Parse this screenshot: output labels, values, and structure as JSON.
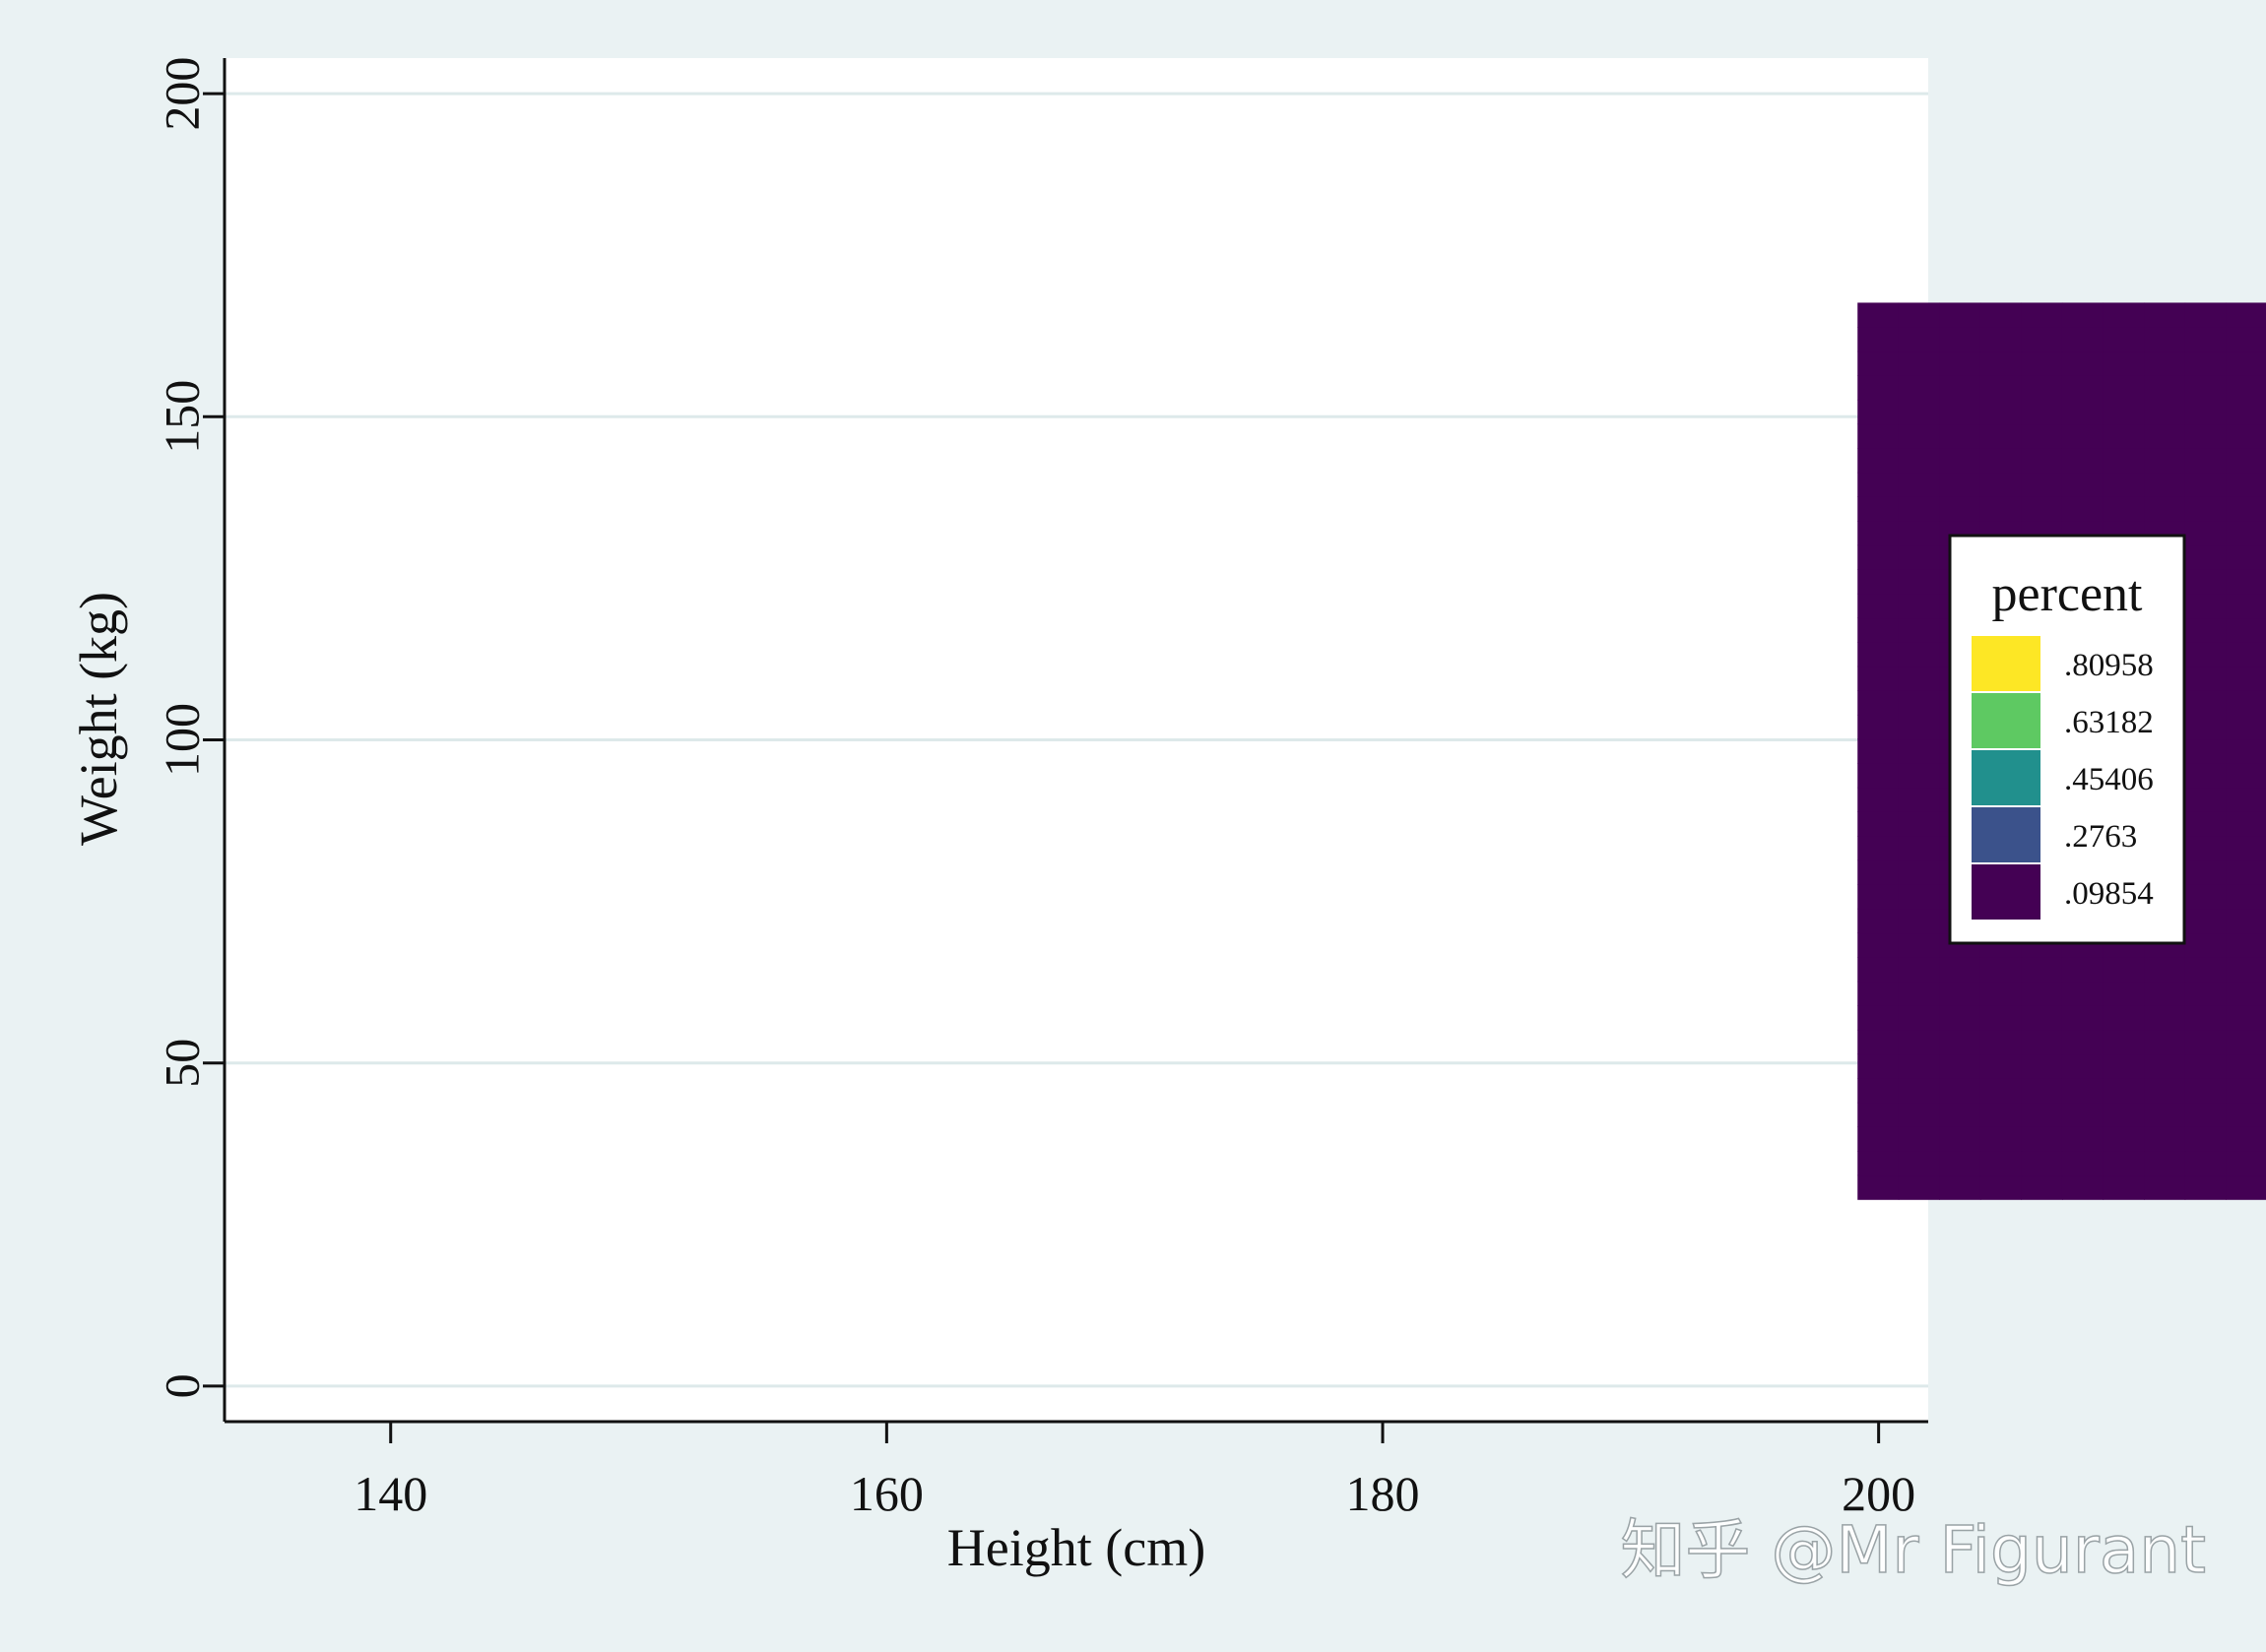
{
  "chart_data": {
    "type": "heatmap",
    "title": "",
    "xlabel": "Height (cm)",
    "ylabel": "Weight (kg)",
    "xlim": [
      133.3,
      202
    ],
    "ylim": [
      -5.5,
      205.5
    ],
    "x_ticks": [
      "140",
      "160",
      "180",
      "200"
    ],
    "y_ticks": [
      "0",
      "50",
      "100",
      "150",
      "200"
    ],
    "grid": "horizontal",
    "bin_width_x": 1.65,
    "bin_width_y": 3.75,
    "x_origin": 134.8,
    "y_origin": 28.9,
    "colors": [
      "#440154",
      "#3b528b",
      "#21908d",
      "#5ec962",
      "#fde725"
    ],
    "legend": {
      "title": "percent",
      "placement": "right",
      "entries": [
        {
          "label": ".80958",
          "color": "#fde725"
        },
        {
          "label": ".63182",
          "color": "#5ec962"
        },
        {
          "label": ".45406",
          "color": "#21908d"
        },
        {
          "label": ".2763",
          "color": "#3b528b"
        },
        {
          "label": ".09854",
          "color": "#440154"
        }
      ]
    },
    "grid_rows_from_bottom": [
      ".......................................aaaaaaaaaaaaaaaaaaaaaaa",
      ".......................................aaaaaaaaaaaaaaaaaaaaaaa",
      ".......................................aaaaaaaaaaaaaaaaaaaaaaa",
      ".......................................aaaaaaaaaaaaaaaaaaaaaaa",
      ".......................................aaaaaaaaaaaaaaaaaaaaaaa",
      ".......................................aaaaaaaaaaaaaaaaaaaaaaa",
      ".......................................aaaaaaaaaaaaaaaaaaaaaaa",
      ".......................................aaaaaaaaaaaaaaaaaaaaaaa",
      ".......................................aaaaaaaaaaaaaaaaaaaaaaa",
      ".......................................aaaaaaaaaaaaaaaaaaaaaaa",
      ".......................................aaaaaaaaaaaaaaaaaaaaaaa",
      ".......................................aaaaaaaaaaaaaaaaaaaaaaa",
      ".......................................aaaaaaaaaaaaaaaaaaaaaaa",
      ".......................................aaaaaaaaaaaaaaaaaaaaaaa",
      ".......................................aaaaaaaaaaaaaaaaaaaaaaa",
      ".......................................aaaaaaaaaaaaaaaaaaaaaaa",
      ".......................................aaaaaaaaaaaaaaaaaaaaaaa",
      ".......................................aaaaaaaaaaaaaaaaaaaaaaa",
      ".......................................aaaaaaaaaaaaaaaaaaaaaaa",
      ".......................................aaaaaaaaaaaaaaaaaaaaaaa",
      ".......................................aaaaaaaaaaaaaaaaaaaaaaa",
      ".......................................aaaaaaaaaaaaaaaaaaaaaaa",
      ".......................................aaaaaaaaaaaaaaaaaaaaaaa",
      ".......................................aaaaaaaaaaaaaaaaaaaaaaa",
      ".......................................aaaaaaaaaaaaaaaaaaaaaaa",
      ".......................................aaaaaaaaaaaaaaaaaaaaaaa",
      ".......................................aaaaaaaaaaaaaaaaaaaaaaa",
      ".......................................aaaaaaaaaaaaaaaaaaaaaaa",
      ".......................................aaaaaaaaaaaaaaaaaaaaaaa",
      ".......................................aaaaaaaaaaaaaaaaaaaaaaa",
      ".......................................aaaaaaaaaaaaaaaaaaaaaaa",
      ".......................................aaaaaaaaaaaaaaaaaaaaaaa",
      ".......................................aaaaaaaaaaaaaaaaaaaaaaa",
      ".......................................aaaaaaaaaaaaaaaaaaaaaaa",
      ".......................................aaaaaaaaaaaaaaaaaaaaaaa",
      ".......................................aaaaaaaaaaaaaaaaaaaaaaa",
      ".......................................aaaaaaaaaaaaaaaaaaaaaaa"
    ]
  },
  "watermark": "知乎 @Mr Figurant"
}
